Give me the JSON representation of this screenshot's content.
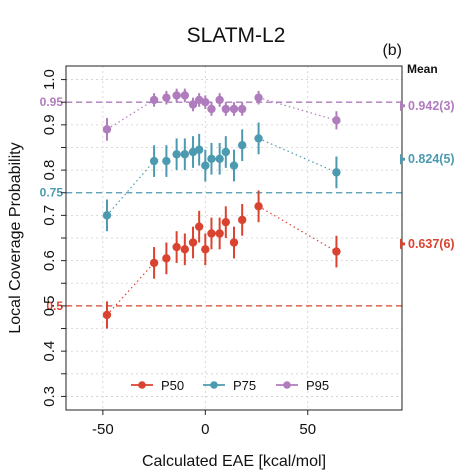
{
  "chart_data": {
    "type": "scatter",
    "title": "SLATM-L2",
    "panel_label": "(b)",
    "xlabel": "Calculated EAE [kcal/mol]",
    "ylabel": "Local Coverage Probability",
    "xlim": [
      -68,
      96
    ],
    "ylim": [
      0.27,
      1.03
    ],
    "xticks": [
      -50,
      0,
      50
    ],
    "yticks": [
      0.3,
      0.35,
      0.4,
      0.45,
      0.5,
      0.55,
      0.6,
      0.65,
      0.7,
      0.75,
      0.8,
      0.85,
      0.9,
      0.95,
      1.0
    ],
    "ytick_labels": [
      "0.3",
      "",
      "0.4",
      "",
      "0.5",
      "",
      "0.6",
      "",
      "0.7",
      "",
      "0.8",
      "",
      "0.9",
      "",
      "1.0"
    ],
    "grid": true,
    "legend_position": "bottom",
    "mean_header": "Mean",
    "colors": {
      "P50": "#d9432f",
      "P75": "#4b9ab0",
      "P95": "#b07cbd"
    },
    "series": [
      {
        "name": "P50",
        "target": 0.5,
        "target_label": "0.5",
        "mean": 0.637,
        "mean_label": "0.637(6)",
        "points": [
          {
            "x": -48,
            "y": 0.48,
            "lo": 0.45,
            "hi": 0.51
          },
          {
            "x": -25,
            "y": 0.595,
            "lo": 0.56,
            "hi": 0.63
          },
          {
            "x": -19,
            "y": 0.605,
            "lo": 0.57,
            "hi": 0.64
          },
          {
            "x": -14,
            "y": 0.63,
            "lo": 0.595,
            "hi": 0.665
          },
          {
            "x": -10,
            "y": 0.625,
            "lo": 0.59,
            "hi": 0.66
          },
          {
            "x": -6,
            "y": 0.64,
            "lo": 0.605,
            "hi": 0.675
          },
          {
            "x": -3,
            "y": 0.675,
            "lo": 0.64,
            "hi": 0.71
          },
          {
            "x": 0,
            "y": 0.625,
            "lo": 0.59,
            "hi": 0.66
          },
          {
            "x": 3,
            "y": 0.66,
            "lo": 0.625,
            "hi": 0.695
          },
          {
            "x": 7,
            "y": 0.66,
            "lo": 0.625,
            "hi": 0.695
          },
          {
            "x": 10,
            "y": 0.685,
            "lo": 0.65,
            "hi": 0.72
          },
          {
            "x": 14,
            "y": 0.64,
            "lo": 0.605,
            "hi": 0.675
          },
          {
            "x": 18,
            "y": 0.69,
            "lo": 0.655,
            "hi": 0.725
          },
          {
            "x": 26,
            "y": 0.72,
            "lo": 0.685,
            "hi": 0.755
          },
          {
            "x": 64,
            "y": 0.62,
            "lo": 0.585,
            "hi": 0.655
          }
        ]
      },
      {
        "name": "P75",
        "target": 0.75,
        "target_label": "0.75",
        "mean": 0.824,
        "mean_label": "0.824(5)",
        "points": [
          {
            "x": -48,
            "y": 0.7,
            "lo": 0.665,
            "hi": 0.735
          },
          {
            "x": -25,
            "y": 0.82,
            "lo": 0.785,
            "hi": 0.855
          },
          {
            "x": -19,
            "y": 0.82,
            "lo": 0.785,
            "hi": 0.855
          },
          {
            "x": -14,
            "y": 0.835,
            "lo": 0.8,
            "hi": 0.87
          },
          {
            "x": -10,
            "y": 0.835,
            "lo": 0.8,
            "hi": 0.87
          },
          {
            "x": -6,
            "y": 0.84,
            "lo": 0.805,
            "hi": 0.875
          },
          {
            "x": -3,
            "y": 0.845,
            "lo": 0.81,
            "hi": 0.88
          },
          {
            "x": 0,
            "y": 0.81,
            "lo": 0.775,
            "hi": 0.845
          },
          {
            "x": 3,
            "y": 0.825,
            "lo": 0.79,
            "hi": 0.86
          },
          {
            "x": 7,
            "y": 0.825,
            "lo": 0.79,
            "hi": 0.86
          },
          {
            "x": 10,
            "y": 0.84,
            "lo": 0.805,
            "hi": 0.875
          },
          {
            "x": 14,
            "y": 0.81,
            "lo": 0.775,
            "hi": 0.845
          },
          {
            "x": 18,
            "y": 0.855,
            "lo": 0.82,
            "hi": 0.89
          },
          {
            "x": 26,
            "y": 0.87,
            "lo": 0.835,
            "hi": 0.905
          },
          {
            "x": 64,
            "y": 0.795,
            "lo": 0.76,
            "hi": 0.83
          }
        ]
      },
      {
        "name": "P95",
        "target": 0.95,
        "target_label": "0.95",
        "mean": 0.942,
        "mean_label": "0.942(3)",
        "points": [
          {
            "x": -48,
            "y": 0.89,
            "lo": 0.865,
            "hi": 0.915
          },
          {
            "x": -25,
            "y": 0.955,
            "lo": 0.94,
            "hi": 0.97
          },
          {
            "x": -19,
            "y": 0.96,
            "lo": 0.945,
            "hi": 0.975
          },
          {
            "x": -14,
            "y": 0.965,
            "lo": 0.95,
            "hi": 0.98
          },
          {
            "x": -10,
            "y": 0.965,
            "lo": 0.95,
            "hi": 0.98
          },
          {
            "x": -6,
            "y": 0.945,
            "lo": 0.93,
            "hi": 0.96
          },
          {
            "x": -3,
            "y": 0.955,
            "lo": 0.94,
            "hi": 0.97
          },
          {
            "x": 0,
            "y": 0.95,
            "lo": 0.935,
            "hi": 0.965
          },
          {
            "x": 3,
            "y": 0.935,
            "lo": 0.92,
            "hi": 0.95
          },
          {
            "x": 7,
            "y": 0.955,
            "lo": 0.94,
            "hi": 0.97
          },
          {
            "x": 10,
            "y": 0.935,
            "lo": 0.92,
            "hi": 0.95
          },
          {
            "x": 14,
            "y": 0.935,
            "lo": 0.92,
            "hi": 0.95
          },
          {
            "x": 18,
            "y": 0.935,
            "lo": 0.92,
            "hi": 0.95
          },
          {
            "x": 26,
            "y": 0.96,
            "lo": 0.945,
            "hi": 0.975
          },
          {
            "x": 64,
            "y": 0.91,
            "lo": 0.89,
            "hi": 0.93
          }
        ]
      }
    ]
  }
}
